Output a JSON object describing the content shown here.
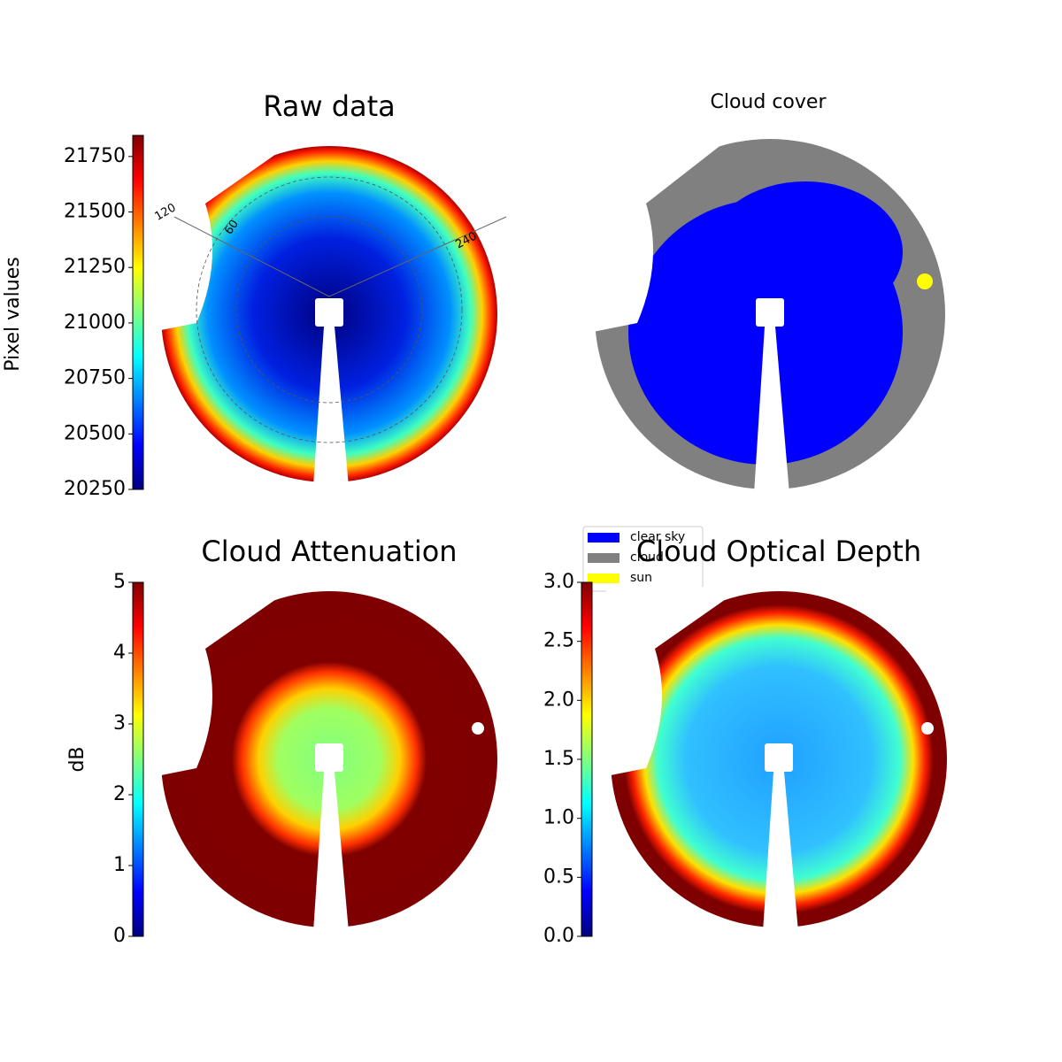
{
  "chart_data": [
    {
      "type": "image",
      "title": "Raw data",
      "colorbar_label": "Pixel values",
      "clim": [
        20250,
        21845
      ],
      "cticks": [
        20250,
        20500,
        20750,
        21000,
        21250,
        21500,
        21750
      ],
      "colormap": "jet",
      "annotations": [
        "120",
        "60",
        "240"
      ]
    },
    {
      "type": "image",
      "title": "Cloud cover",
      "series": [
        {
          "name": "clear sky",
          "color": "#0000ff"
        },
        {
          "name": "cloud",
          "color": "#808080"
        },
        {
          "name": "sun",
          "color": "#ffff00"
        }
      ]
    },
    {
      "type": "image",
      "title": "Cloud Attenuation",
      "colorbar_label": "dB",
      "clim": [
        0,
        5
      ],
      "cticks": [
        0,
        1,
        2,
        3,
        4,
        5
      ],
      "colormap": "jet"
    },
    {
      "type": "image",
      "title": "Cloud Optical Depth",
      "clim": [
        0,
        3
      ],
      "cticks": [
        {
          "value": 0,
          "label": "0.0"
        },
        0.5,
        {
          "value": 1,
          "label": "1.0"
        },
        1.5,
        {
          "value": 2,
          "label": "2.0"
        },
        2.5,
        {
          "value": 3,
          "label": "3.0"
        }
      ],
      "colormap": "jet"
    }
  ]
}
